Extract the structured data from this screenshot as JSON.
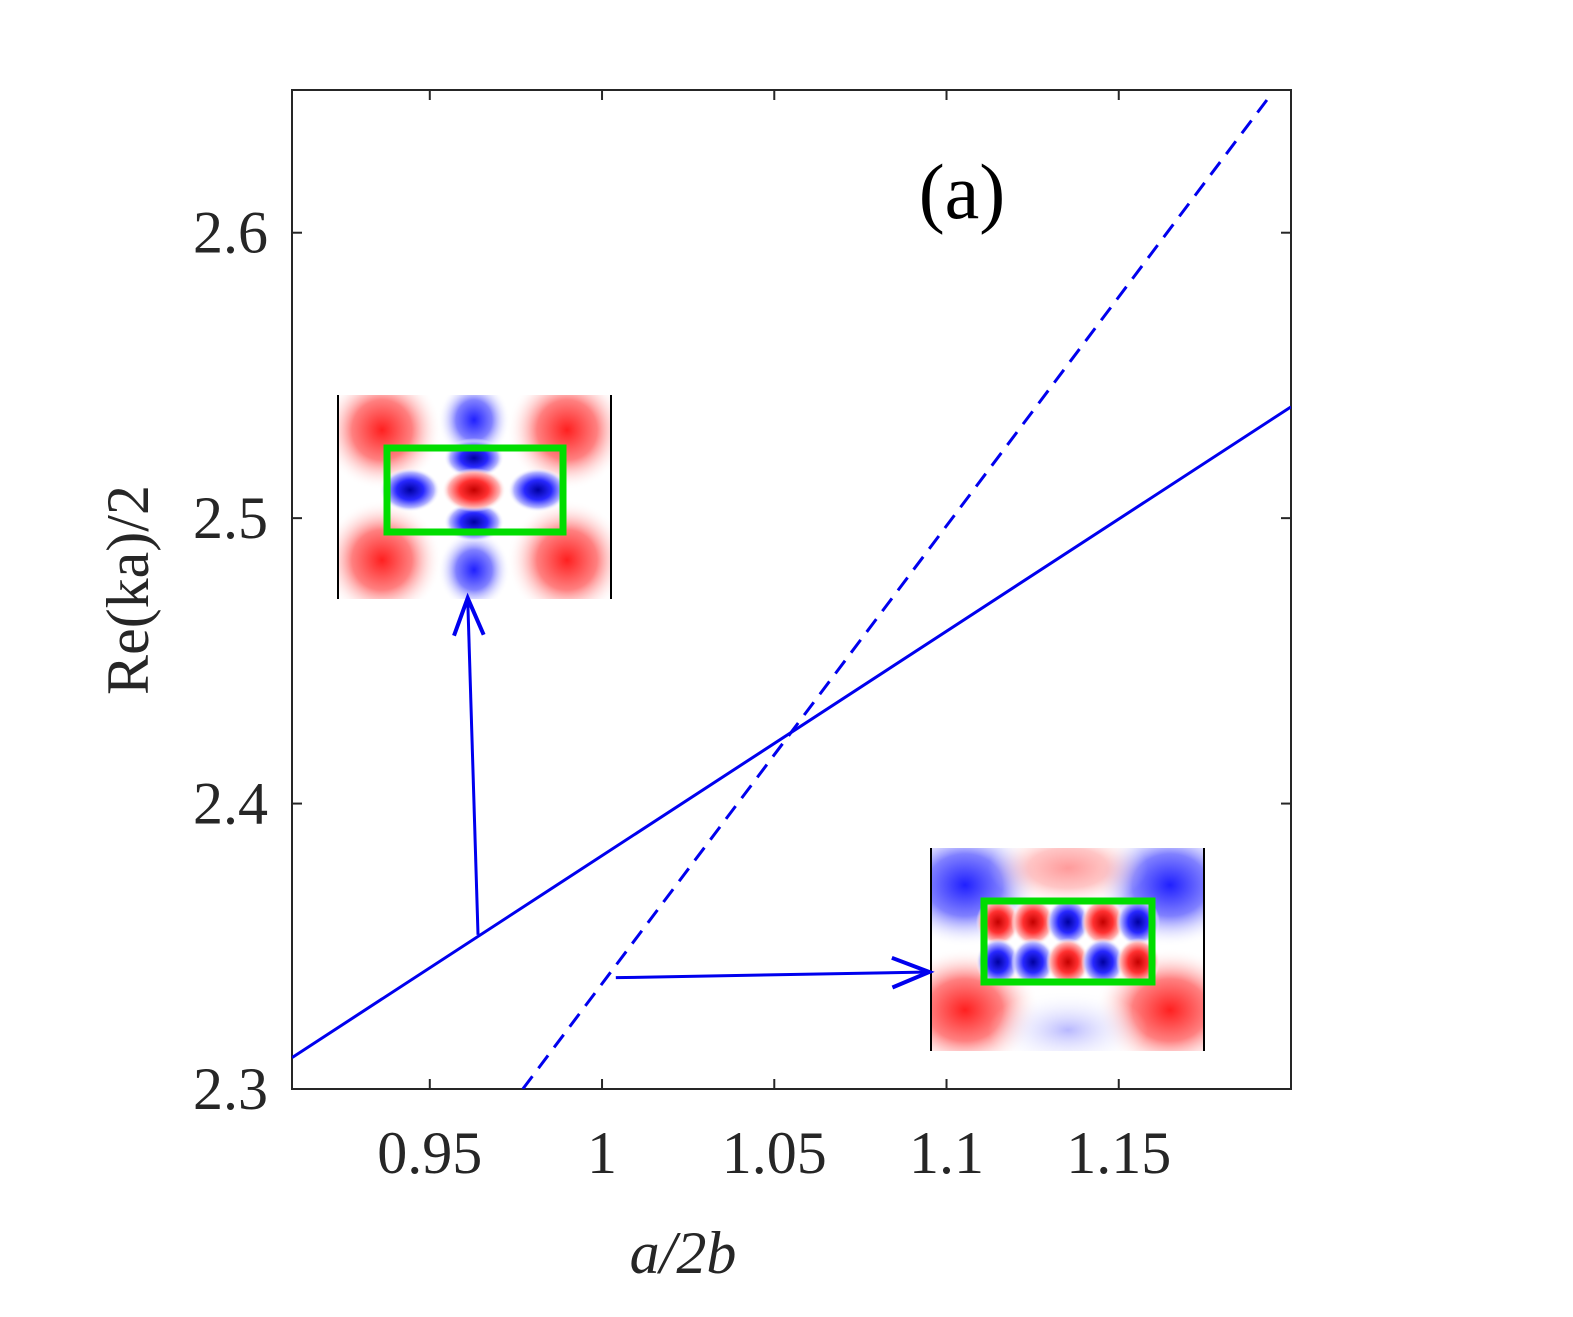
{
  "chart_data": {
    "type": "line",
    "panel_label": "(a)",
    "xlabel": "a/2b",
    "ylabel": "Re(ka)/2",
    "xlim": [
      0.91,
      1.2
    ],
    "ylim": [
      2.3,
      2.65
    ],
    "x_ticks": [
      0.95,
      1,
      1.05,
      1.1,
      1.15
    ],
    "x_tick_labels": [
      "0.95",
      "1",
      "1.05",
      "1.1",
      "1.15"
    ],
    "y_ticks": [
      2.3,
      2.4,
      2.5,
      2.6
    ],
    "y_tick_labels": [
      "2.3",
      "2.4",
      "2.5",
      "2.6"
    ],
    "grid": false,
    "series": [
      {
        "name": "solid",
        "style": "solid",
        "color": "#0000ee",
        "x": [
          0.91,
          1.2
        ],
        "y": [
          2.311,
          2.539
        ]
      },
      {
        "name": "dashed",
        "style": "dashed",
        "color": "#0000ee",
        "x": [
          0.977,
          1.193
        ],
        "y": [
          2.3,
          2.6465
        ]
      }
    ],
    "annotations": [
      {
        "name": "mode-pattern-upper",
        "from": [
          0.964,
          2.354
        ],
        "to": [
          0.961,
          2.472
        ],
        "frame_color": "#00dd00"
      },
      {
        "name": "mode-pattern-lower",
        "from": [
          1.004,
          2.339
        ],
        "to": [
          1.095,
          2.341
        ],
        "frame_color": "#00dd00"
      }
    ],
    "colors": {
      "line": "#0000ee",
      "mode_positive": "#dd0000",
      "mode_negative": "#0000cc",
      "frame": "#00dd00",
      "axes": "#262626"
    }
  }
}
